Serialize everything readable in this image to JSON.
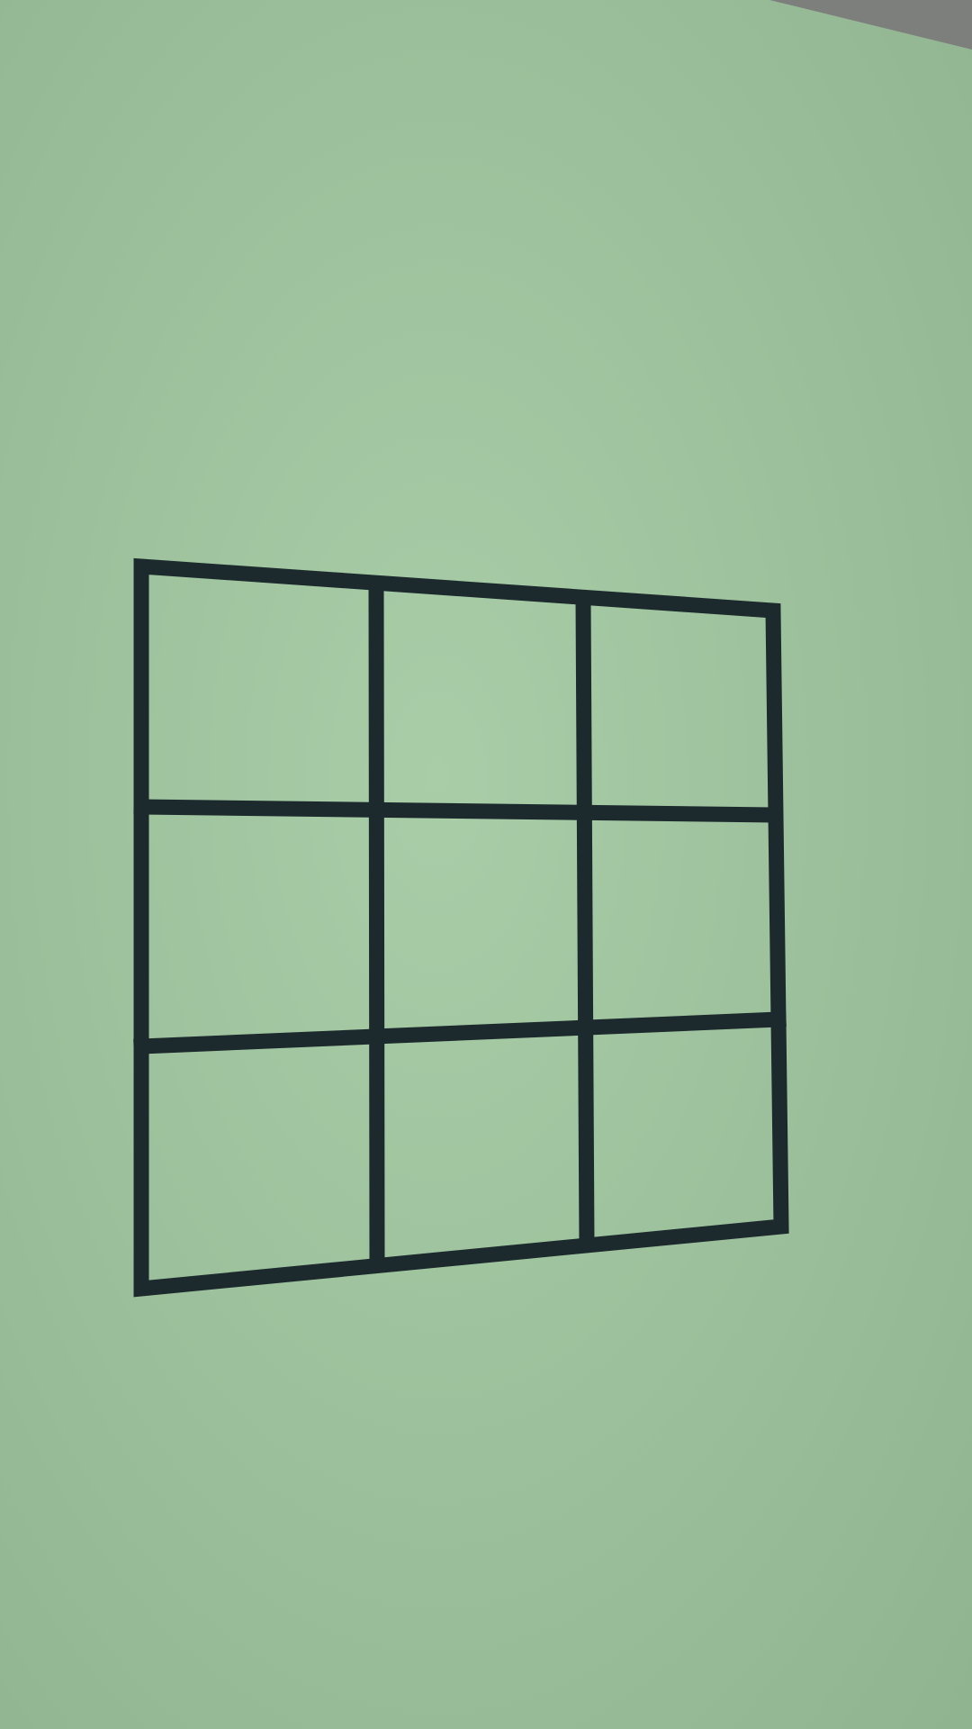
{
  "scene": {
    "paper_color": "#a9cda7",
    "paper_shadow_color": "#8fb38f",
    "background_corner_color": "#7d7f7d",
    "grid_line_color": "#1c2a2e",
    "grid": {
      "rows": 3,
      "columns": 3,
      "cells": [
        {
          "row": 1,
          "column": 1,
          "content": ""
        },
        {
          "row": 1,
          "column": 2,
          "content": ""
        },
        {
          "row": 1,
          "column": 3,
          "content": ""
        },
        {
          "row": 2,
          "column": 1,
          "content": ""
        },
        {
          "row": 2,
          "column": 2,
          "content": ""
        },
        {
          "row": 2,
          "column": 3,
          "content": ""
        },
        {
          "row": 3,
          "column": 1,
          "content": ""
        },
        {
          "row": 3,
          "column": 2,
          "content": ""
        },
        {
          "row": 3,
          "column": 3,
          "content": ""
        }
      ]
    }
  }
}
